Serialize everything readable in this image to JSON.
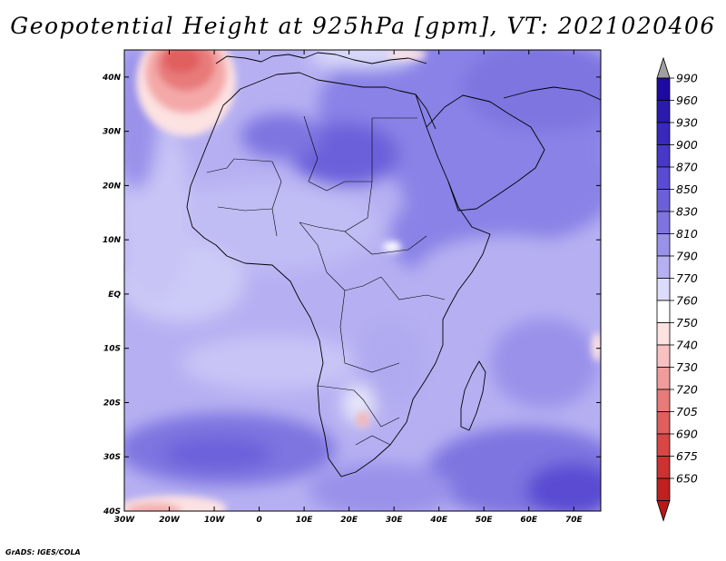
{
  "title": "Geopotential Height at 925hPa [gpm], VT: 2021020406",
  "credit": "GrADS: IGES/COLA",
  "map": {
    "lon_range": [
      -30,
      76
    ],
    "lat_range": [
      -40,
      45
    ],
    "lon_ticks": [
      {
        "value": -30,
        "label": "30W"
      },
      {
        "value": -20,
        "label": "20W"
      },
      {
        "value": -10,
        "label": "10W"
      },
      {
        "value": 0,
        "label": "0"
      },
      {
        "value": 10,
        "label": "10E"
      },
      {
        "value": 20,
        "label": "20E"
      },
      {
        "value": 30,
        "label": "30E"
      },
      {
        "value": 40,
        "label": "40E"
      },
      {
        "value": 50,
        "label": "50E"
      },
      {
        "value": 60,
        "label": "60E"
      },
      {
        "value": 70,
        "label": "70E"
      }
    ],
    "lat_ticks": [
      {
        "value": 40,
        "label": "40N"
      },
      {
        "value": 30,
        "label": "30N"
      },
      {
        "value": 20,
        "label": "20N"
      },
      {
        "value": 10,
        "label": "10N"
      },
      {
        "value": 0,
        "label": "EQ"
      },
      {
        "value": -10,
        "label": "10S"
      },
      {
        "value": -20,
        "label": "20S"
      },
      {
        "value": -30,
        "label": "30S"
      },
      {
        "value": -40,
        "label": "40S"
      }
    ]
  },
  "colorbar": {
    "labels": [
      "990",
      "960",
      "930",
      "900",
      "870",
      "850",
      "830",
      "810",
      "790",
      "770",
      "760",
      "750",
      "740",
      "730",
      "720",
      "705",
      "690",
      "675",
      "650"
    ],
    "colors": [
      "#1e0aa0",
      "#2a1aae",
      "#3828bc",
      "#4838c8",
      "#5a4cd2",
      "#6c60da",
      "#7e74e0",
      "#9a92ea",
      "#b6b0f2",
      "#dcdcfa",
      "#ffffff",
      "#fde2e2",
      "#f8c0c0",
      "#f09c9c",
      "#e87a7a",
      "#e05e5e",
      "#d84646",
      "#cc3232",
      "#c02020"
    ],
    "top_arrow_color": "#a0a0a0",
    "bottom_arrow_color": "#b81818"
  }
}
